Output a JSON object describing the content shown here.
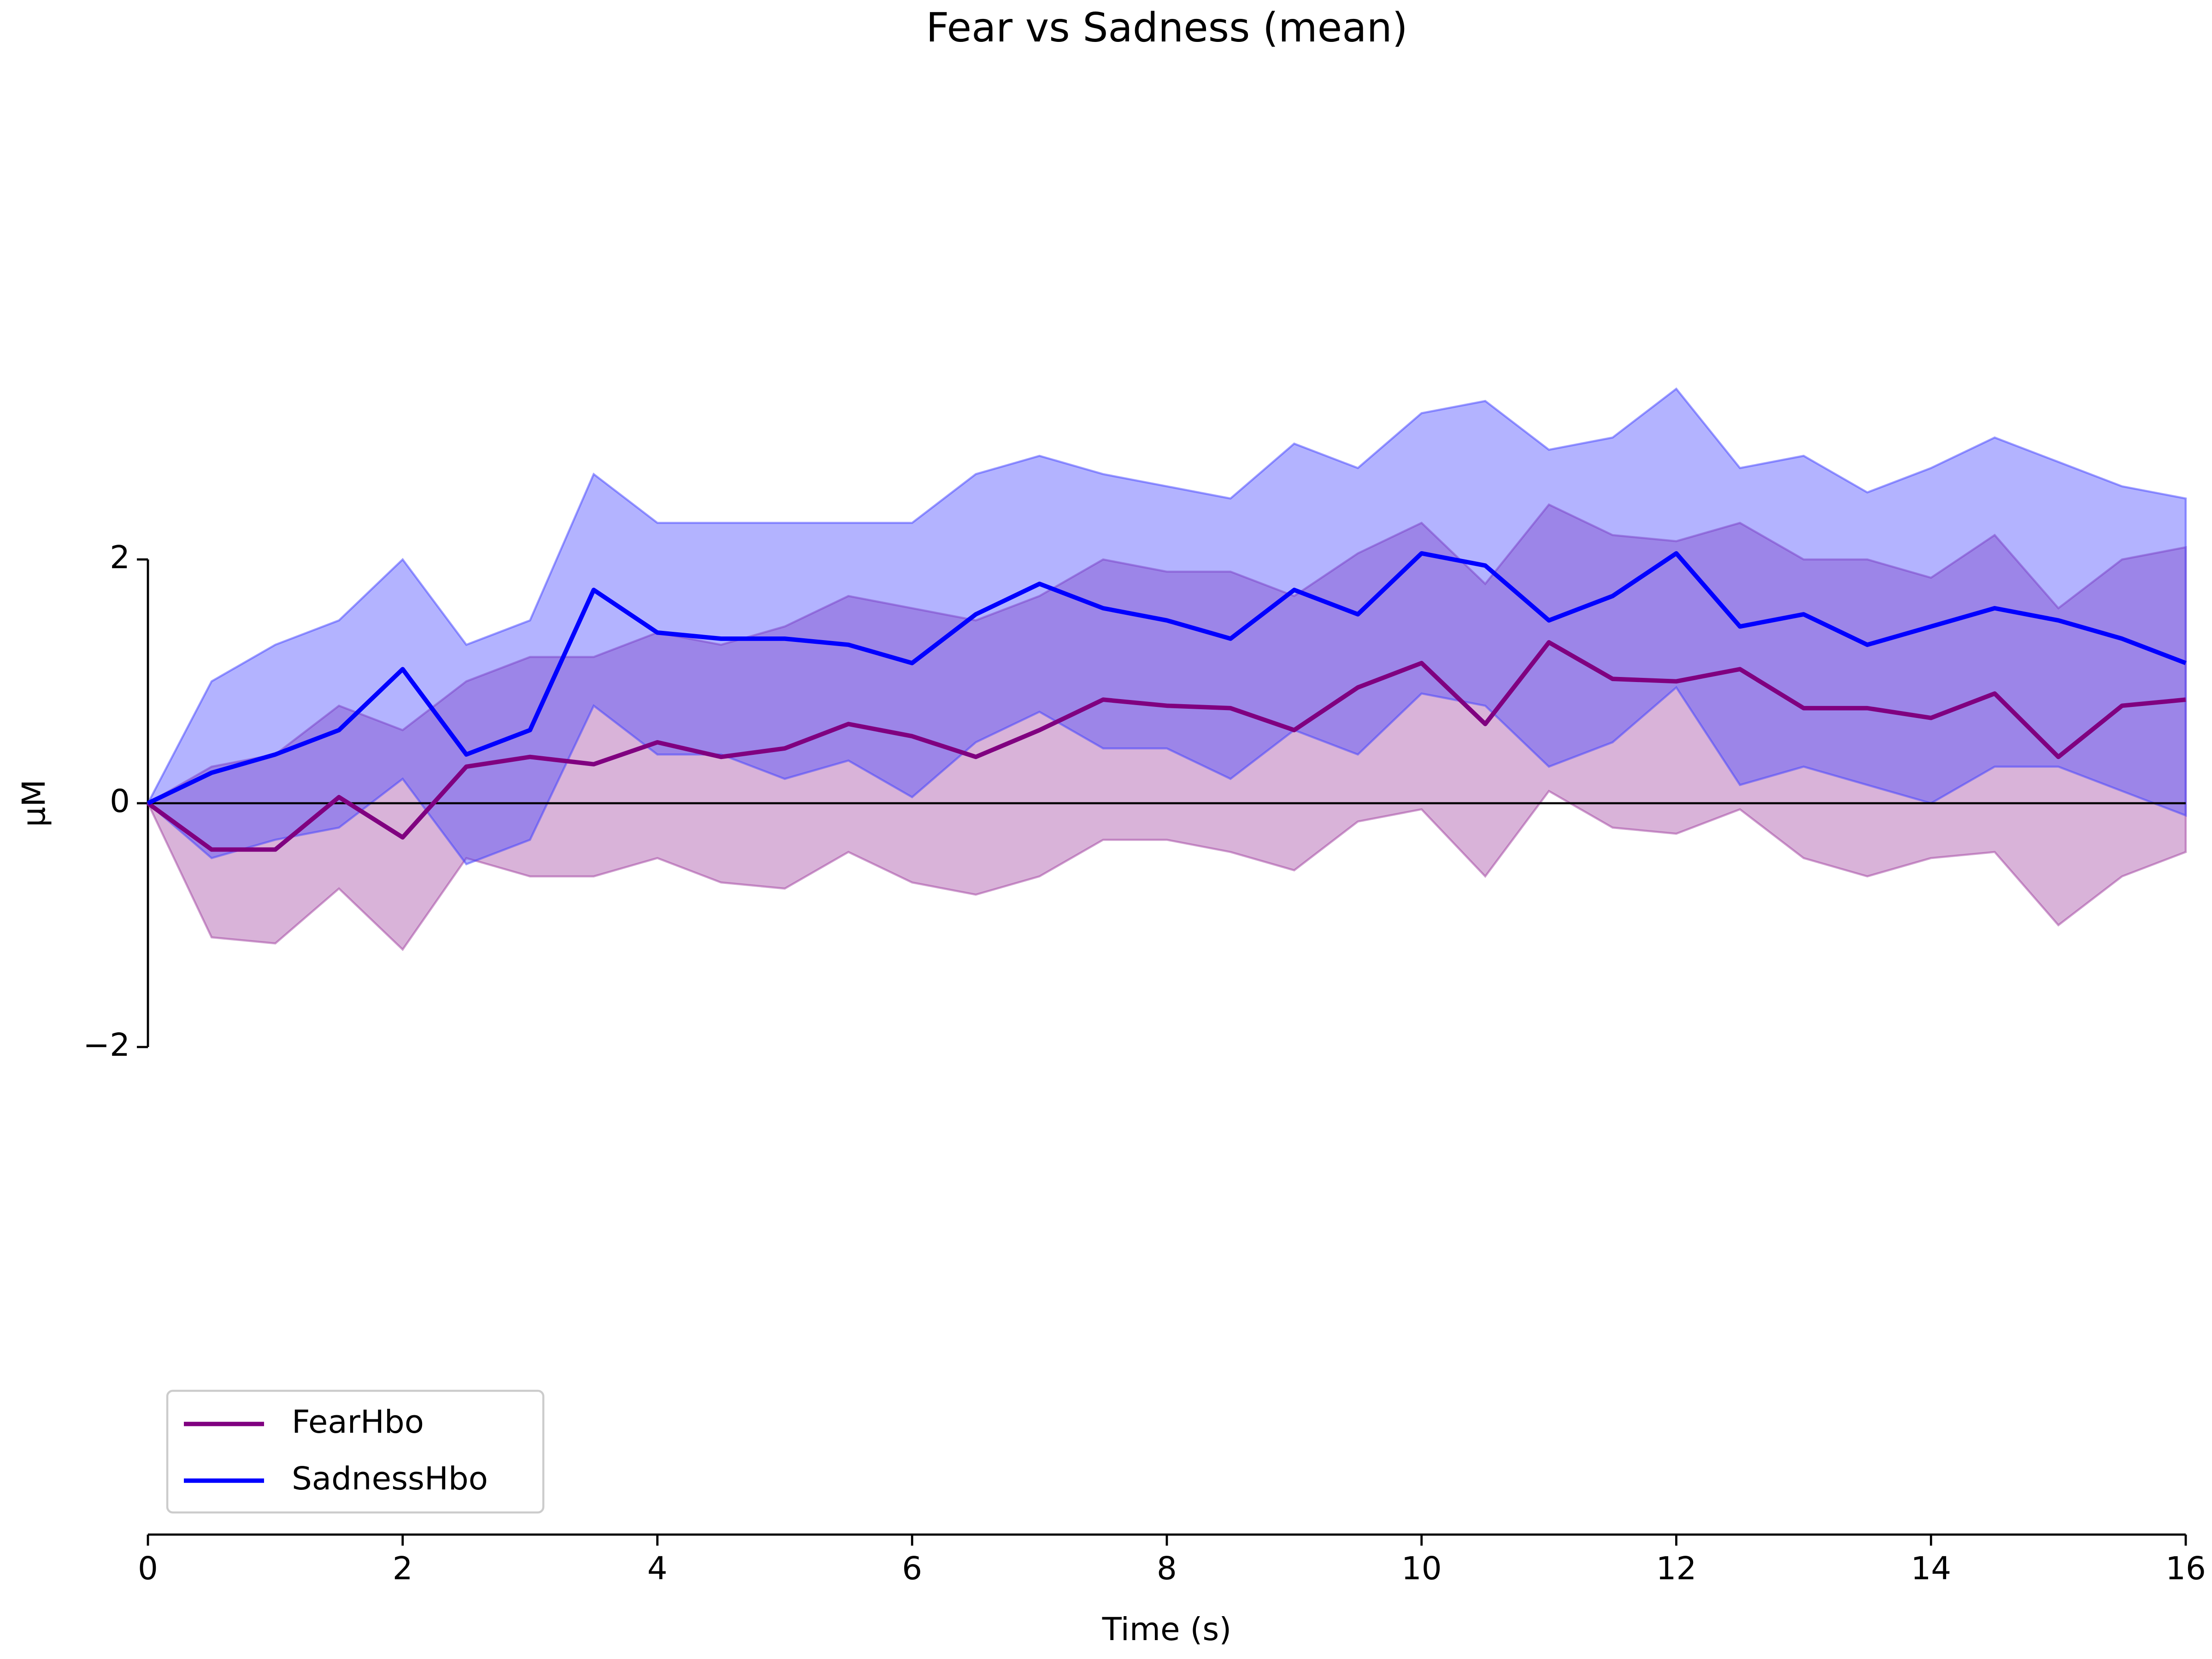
{
  "chart_data": {
    "type": "line",
    "title": "Fear vs Sadness (mean)",
    "xlabel": "Time (s)",
    "ylabel": "µM",
    "x": [
      0,
      0.5,
      1,
      1.5,
      2,
      2.5,
      3,
      3.5,
      4,
      4.5,
      5,
      5.5,
      6,
      6.5,
      7,
      7.5,
      8,
      8.5,
      9,
      9.5,
      10,
      10.5,
      11,
      11.5,
      12,
      12.5,
      13,
      13.5,
      14,
      14.5,
      15,
      15.5,
      16
    ],
    "series": [
      {
        "name": "FearHbo",
        "color": "#800080",
        "band_color": "#a040a0",
        "values": [
          0,
          -0.38,
          -0.38,
          0.05,
          -0.28,
          0.3,
          0.38,
          0.32,
          0.5,
          0.38,
          0.45,
          0.65,
          0.55,
          0.38,
          0.6,
          0.85,
          0.8,
          0.78,
          0.6,
          0.95,
          1.15,
          0.65,
          1.32,
          1.02,
          1.0,
          1.1,
          0.78,
          0.78,
          0.7,
          0.9,
          0.38,
          0.8,
          0.85
        ],
        "upper": [
          0,
          0.3,
          0.4,
          0.8,
          0.6,
          1.0,
          1.2,
          1.2,
          1.4,
          1.3,
          1.45,
          1.7,
          1.6,
          1.5,
          1.7,
          2.0,
          1.9,
          1.9,
          1.7,
          2.05,
          2.3,
          1.8,
          2.45,
          2.2,
          2.15,
          2.3,
          2.0,
          2.0,
          1.85,
          2.2,
          1.6,
          2.0,
          2.1
        ],
        "lower": [
          0,
          -1.1,
          -1.15,
          -0.7,
          -1.2,
          -0.45,
          -0.6,
          -0.6,
          -0.45,
          -0.65,
          -0.7,
          -0.4,
          -0.65,
          -0.75,
          -0.6,
          -0.3,
          -0.3,
          -0.4,
          -0.55,
          -0.15,
          -0.05,
          -0.6,
          0.1,
          -0.2,
          -0.25,
          -0.05,
          -0.45,
          -0.6,
          -0.45,
          -0.4,
          -1.0,
          -0.6,
          -0.4
        ]
      },
      {
        "name": "SadnessHbo",
        "color": "#0000ff",
        "band_color": "#4040ff",
        "values": [
          0,
          0.25,
          0.4,
          0.6,
          1.1,
          0.4,
          0.6,
          1.75,
          1.4,
          1.35,
          1.35,
          1.3,
          1.15,
          1.55,
          1.8,
          1.6,
          1.5,
          1.35,
          1.75,
          1.55,
          2.05,
          1.95,
          1.5,
          1.7,
          2.05,
          1.45,
          1.55,
          1.3,
          1.45,
          1.6,
          1.5,
          1.35,
          1.15
        ],
        "upper": [
          0,
          1.0,
          1.3,
          1.5,
          2.0,
          1.3,
          1.5,
          2.7,
          2.3,
          2.3,
          2.3,
          2.3,
          2.3,
          2.7,
          2.85,
          2.7,
          2.6,
          2.5,
          2.95,
          2.75,
          3.2,
          3.3,
          2.9,
          3.0,
          3.4,
          2.75,
          2.85,
          2.55,
          2.75,
          3.0,
          2.8,
          2.6,
          2.5
        ],
        "lower": [
          0,
          -0.45,
          -0.3,
          -0.2,
          0.2,
          -0.5,
          -0.3,
          0.8,
          0.4,
          0.4,
          0.2,
          0.35,
          0.05,
          0.5,
          0.75,
          0.45,
          0.45,
          0.2,
          0.6,
          0.4,
          0.9,
          0.8,
          0.3,
          0.5,
          0.95,
          0.15,
          0.3,
          0.15,
          0.0,
          0.3,
          0.3,
          0.1,
          -0.1
        ]
      }
    ],
    "xlim": [
      0,
      16
    ],
    "xticks": [
      0,
      2,
      4,
      6,
      8,
      10,
      12,
      14,
      16
    ],
    "ylim": [
      -6,
      6
    ],
    "yticks": [
      {
        "value": -2,
        "label": "−2"
      },
      0,
      2
    ],
    "hline": 0,
    "legend": "lower left"
  }
}
